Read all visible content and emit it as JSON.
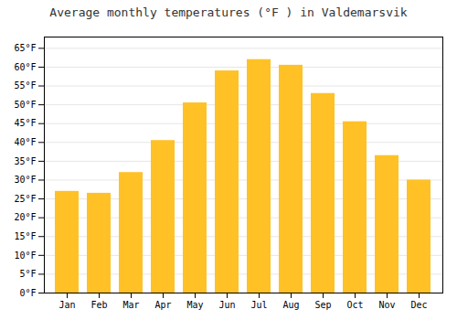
{
  "chart_data": {
    "type": "bar",
    "title": "Average monthly temperatures (°F ) in Valdemarsvik",
    "categories": [
      "Jan",
      "Feb",
      "Mar",
      "Apr",
      "May",
      "Jun",
      "Jul",
      "Aug",
      "Sep",
      "Oct",
      "Nov",
      "Dec"
    ],
    "values": [
      27,
      26.5,
      32,
      40.5,
      50.5,
      59,
      62,
      60.5,
      53,
      45.5,
      36.5,
      30
    ],
    "color": "#FFC125",
    "ylim": [
      0,
      68
    ],
    "yticks": [
      {
        "value": 0,
        "label": "0°F"
      },
      {
        "value": 5,
        "label": "5°F"
      },
      {
        "value": 10,
        "label": "10°F"
      },
      {
        "value": 15,
        "label": "15°F"
      },
      {
        "value": 20,
        "label": "20°F"
      },
      {
        "value": 25,
        "label": "25°F"
      },
      {
        "value": 30,
        "label": "30°F"
      },
      {
        "value": 35,
        "label": "35°F"
      },
      {
        "value": 40,
        "label": "40°F"
      },
      {
        "value": 45,
        "label": "45°F"
      },
      {
        "value": 50,
        "label": "50°F"
      },
      {
        "value": 55,
        "label": "55°F"
      },
      {
        "value": 60,
        "label": "60°F"
      },
      {
        "value": 65,
        "label": "65°F"
      }
    ],
    "grid": true
  }
}
